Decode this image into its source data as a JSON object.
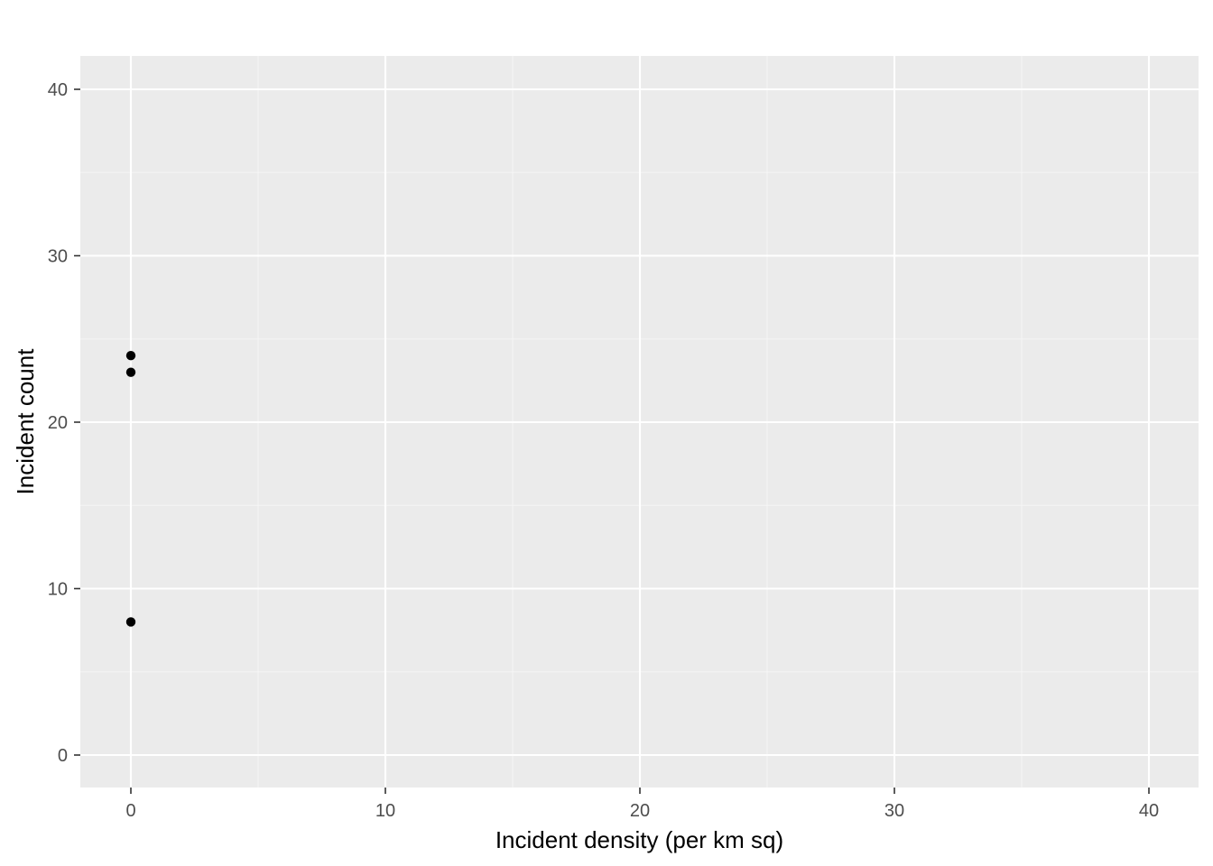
{
  "chart_data": {
    "type": "scatter",
    "title": "",
    "xlabel": "Incident density (per km sq)",
    "ylabel": "Incident count",
    "xlim": [
      -2,
      41
    ],
    "ylim": [
      -2,
      42
    ],
    "x_ticks": [
      0,
      10,
      20,
      30,
      40
    ],
    "y_ticks": [
      0,
      10,
      20,
      30,
      40
    ],
    "x_tick_labels": [
      "0",
      "10",
      "20",
      "30",
      "40"
    ],
    "y_tick_labels": [
      "0",
      "10",
      "20",
      "30",
      "40"
    ],
    "grid": true,
    "legend": "none",
    "points": [
      {
        "x": 0,
        "y": 24
      },
      {
        "x": 0,
        "y": 23
      },
      {
        "x": 0,
        "y": 8
      }
    ]
  },
  "colors": {
    "panel_background": "#ebebeb",
    "grid_major": "#ffffff",
    "grid_minor": "#f5f5f5",
    "point": "#000000",
    "tick_label": "#4d4d4d",
    "tick_mark": "#333333"
  }
}
